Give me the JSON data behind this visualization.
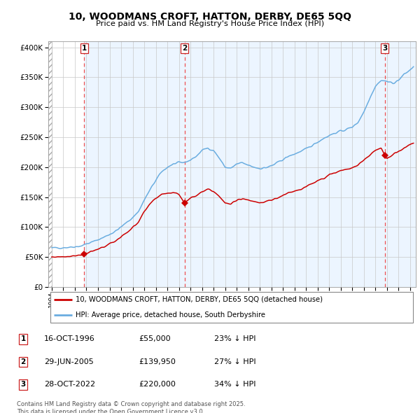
{
  "title_line1": "10, WOODMANS CROFT, HATTON, DERBY, DE65 5QQ",
  "title_line2": "Price paid vs. HM Land Registry's House Price Index (HPI)",
  "xlim_start": 1993.7,
  "xlim_end": 2025.5,
  "ylim_min": 0,
  "ylim_max": 410000,
  "sale_dates": [
    1996.79,
    2005.49,
    2022.83
  ],
  "sale_prices": [
    55000,
    139950,
    220000
  ],
  "sale_labels": [
    "1",
    "2",
    "3"
  ],
  "legend_red": "10, WOODMANS CROFT, HATTON, DERBY, DE65 5QQ (detached house)",
  "legend_blue": "HPI: Average price, detached house, South Derbyshire",
  "table_entries": [
    {
      "label": "1",
      "date": "16-OCT-1996",
      "price": "£55,000",
      "hpi": "23% ↓ HPI"
    },
    {
      "label": "2",
      "date": "29-JUN-2005",
      "price": "£139,950",
      "hpi": "27% ↓ HPI"
    },
    {
      "label": "3",
      "date": "28-OCT-2022",
      "price": "£220,000",
      "hpi": "34% ↓ HPI"
    }
  ],
  "footnote": "Contains HM Land Registry data © Crown copyright and database right 2025.\nThis data is licensed under the Open Government Licence v3.0.",
  "hpi_color": "#6aade0",
  "red_color": "#cc0000",
  "shade_color": "#ddeeff",
  "grid_color": "#c8c8c8",
  "hpi_anchors": [
    [
      1994.0,
      65000
    ],
    [
      1994.5,
      65500
    ],
    [
      1995.0,
      66000
    ],
    [
      1995.5,
      66500
    ],
    [
      1996.0,
      67500
    ],
    [
      1996.5,
      68500
    ],
    [
      1997.0,
      72000
    ],
    [
      1997.5,
      75000
    ],
    [
      1998.0,
      79000
    ],
    [
      1998.5,
      83000
    ],
    [
      1999.0,
      88000
    ],
    [
      1999.5,
      93000
    ],
    [
      2000.0,
      100000
    ],
    [
      2000.5,
      108000
    ],
    [
      2001.0,
      116000
    ],
    [
      2001.5,
      126000
    ],
    [
      2002.0,
      145000
    ],
    [
      2002.5,
      162000
    ],
    [
      2003.0,
      178000
    ],
    [
      2003.5,
      192000
    ],
    [
      2004.0,
      200000
    ],
    [
      2004.5,
      205000
    ],
    [
      2005.0,
      207000
    ],
    [
      2005.5,
      208000
    ],
    [
      2006.0,
      212000
    ],
    [
      2006.5,
      218000
    ],
    [
      2007.0,
      228000
    ],
    [
      2007.5,
      232000
    ],
    [
      2008.0,
      228000
    ],
    [
      2008.5,
      215000
    ],
    [
      2009.0,
      200000
    ],
    [
      2009.5,
      198000
    ],
    [
      2010.0,
      205000
    ],
    [
      2010.5,
      207000
    ],
    [
      2011.0,
      203000
    ],
    [
      2011.5,
      200000
    ],
    [
      2012.0,
      198000
    ],
    [
      2012.5,
      199000
    ],
    [
      2013.0,
      202000
    ],
    [
      2013.5,
      207000
    ],
    [
      2014.0,
      213000
    ],
    [
      2014.5,
      218000
    ],
    [
      2015.0,
      222000
    ],
    [
      2015.5,
      226000
    ],
    [
      2016.0,
      230000
    ],
    [
      2016.5,
      236000
    ],
    [
      2017.0,
      242000
    ],
    [
      2017.5,
      248000
    ],
    [
      2018.0,
      253000
    ],
    [
      2018.5,
      257000
    ],
    [
      2019.0,
      260000
    ],
    [
      2019.5,
      263000
    ],
    [
      2020.0,
      267000
    ],
    [
      2020.5,
      275000
    ],
    [
      2021.0,
      292000
    ],
    [
      2021.5,
      315000
    ],
    [
      2022.0,
      335000
    ],
    [
      2022.5,
      345000
    ],
    [
      2023.0,
      343000
    ],
    [
      2023.5,
      340000
    ],
    [
      2024.0,
      345000
    ],
    [
      2024.5,
      355000
    ],
    [
      2025.0,
      362000
    ],
    [
      2025.3,
      368000
    ]
  ],
  "red_anchors": [
    [
      1994.0,
      50000
    ],
    [
      1994.5,
      50500
    ],
    [
      1995.0,
      51000
    ],
    [
      1995.5,
      51500
    ],
    [
      1996.0,
      52500
    ],
    [
      1996.5,
      53500
    ],
    [
      1996.79,
      55000
    ],
    [
      1997.0,
      56000
    ],
    [
      1997.5,
      59000
    ],
    [
      1998.0,
      63000
    ],
    [
      1998.5,
      67000
    ],
    [
      1999.0,
      72000
    ],
    [
      1999.5,
      77000
    ],
    [
      2000.0,
      84000
    ],
    [
      2000.5,
      91000
    ],
    [
      2001.0,
      99000
    ],
    [
      2001.5,
      109000
    ],
    [
      2002.0,
      125000
    ],
    [
      2002.5,
      138000
    ],
    [
      2003.0,
      148000
    ],
    [
      2003.5,
      155000
    ],
    [
      2004.0,
      157000
    ],
    [
      2004.5,
      158000
    ],
    [
      2005.0,
      155000
    ],
    [
      2005.49,
      139950
    ],
    [
      2005.6,
      143000
    ],
    [
      2006.0,
      148000
    ],
    [
      2006.5,
      153000
    ],
    [
      2007.0,
      160000
    ],
    [
      2007.5,
      163000
    ],
    [
      2008.0,
      160000
    ],
    [
      2008.5,
      152000
    ],
    [
      2009.0,
      140000
    ],
    [
      2009.5,
      138000
    ],
    [
      2010.0,
      145000
    ],
    [
      2010.5,
      148000
    ],
    [
      2011.0,
      145000
    ],
    [
      2011.5,
      143000
    ],
    [
      2012.0,
      141000
    ],
    [
      2012.5,
      142000
    ],
    [
      2013.0,
      145000
    ],
    [
      2013.5,
      148000
    ],
    [
      2014.0,
      153000
    ],
    [
      2014.5,
      157000
    ],
    [
      2015.0,
      160000
    ],
    [
      2015.5,
      163000
    ],
    [
      2016.0,
      167000
    ],
    [
      2016.5,
      172000
    ],
    [
      2017.0,
      177000
    ],
    [
      2017.5,
      182000
    ],
    [
      2018.0,
      187000
    ],
    [
      2018.5,
      191000
    ],
    [
      2019.0,
      194000
    ],
    [
      2019.5,
      196000
    ],
    [
      2020.0,
      198000
    ],
    [
      2020.5,
      204000
    ],
    [
      2021.0,
      212000
    ],
    [
      2021.5,
      220000
    ],
    [
      2022.0,
      228000
    ],
    [
      2022.5,
      232000
    ],
    [
      2022.83,
      220000
    ],
    [
      2023.0,
      215000
    ],
    [
      2023.3,
      218000
    ],
    [
      2023.6,
      222000
    ],
    [
      2024.0,
      226000
    ],
    [
      2024.5,
      232000
    ],
    [
      2025.0,
      237000
    ],
    [
      2025.3,
      240000
    ]
  ]
}
